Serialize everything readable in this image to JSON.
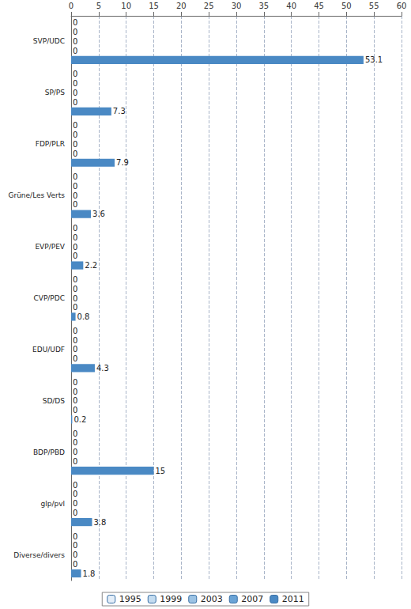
{
  "chart_data": {
    "type": "bar",
    "orientation": "horizontal",
    "categories": [
      "SVP/UDC",
      "SP/PS",
      "FDP/PLR",
      "Grüne/Les Verts",
      "EVP/PEV",
      "CVP/PDC",
      "EDU/UDF",
      "SD/DS",
      "BDP/PBD",
      "glp/pvl",
      "Diverse/divers"
    ],
    "series": [
      {
        "name": "1995",
        "color": "#e4eef8",
        "values": [
          0,
          0,
          0,
          0,
          0,
          0,
          0,
          0,
          0,
          0,
          0
        ]
      },
      {
        "name": "1999",
        "color": "#c4dcf0",
        "values": [
          0,
          0,
          0,
          0,
          0,
          0,
          0,
          0,
          0,
          0,
          0
        ]
      },
      {
        "name": "2003",
        "color": "#9cc3e4",
        "values": [
          0,
          0,
          0,
          0,
          0,
          0,
          0,
          0,
          0,
          0,
          0
        ]
      },
      {
        "name": "2007",
        "color": "#6aa3d5",
        "values": [
          0,
          0,
          0,
          0,
          0,
          0,
          0,
          0,
          0,
          0,
          0
        ]
      },
      {
        "name": "2011",
        "color": "#4a89c4",
        "values": [
          53.1,
          7.3,
          7.9,
          3.6,
          2.2,
          0.8,
          4.3,
          0.2,
          15,
          3.8,
          1.8
        ]
      }
    ],
    "xlim": [
      0,
      60
    ],
    "xticks": [
      0,
      5,
      10,
      15,
      20,
      25,
      30,
      35,
      40,
      45,
      50,
      55,
      60
    ],
    "grid": true,
    "legend": "bottom",
    "data_labels": true
  }
}
